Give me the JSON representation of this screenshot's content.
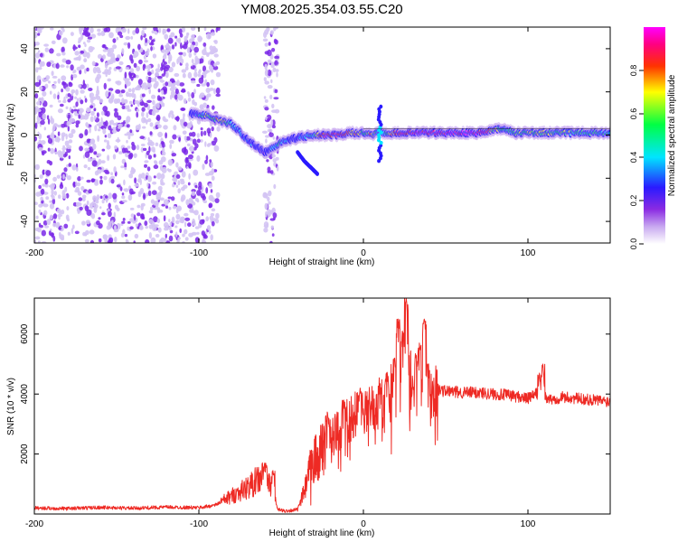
{
  "title": "YM08.2025.354.03.55.C20",
  "colors": {
    "snr_line": "#ee2a24",
    "axis": "#000000",
    "spectro_bg": "#ffffff",
    "noise_light": "#d4c4f4",
    "noise_dark": "#7a28e8",
    "colormap": [
      "#ffffff",
      "#c8a8f0",
      "#8a2be2",
      "#2a1aff",
      "#00e5ff",
      "#00ff44",
      "#ffff00",
      "#ff3300",
      "#ff0080",
      "#ff00ff"
    ]
  },
  "chart_data": [
    {
      "type": "heatmap",
      "name": "spectrogram",
      "xlabel": "Height of straight line (km)",
      "ylabel": "Frequency (Hz)",
      "xlim": [
        -200,
        150
      ],
      "ylim": [
        -50,
        50
      ],
      "xticks": [
        -200,
        -100,
        0,
        100
      ],
      "xtick_labels": [
        "-200",
        "-100",
        "0",
        "100"
      ],
      "yticks": [
        -40,
        -20,
        0,
        20,
        40
      ],
      "ytick_labels": [
        "-40",
        "-20",
        "0",
        "20",
        "40"
      ],
      "colorbar": {
        "label": "Normalized spectral amplitude",
        "range": [
          0.0,
          1.0
        ],
        "ticks": [
          0.0,
          0.2,
          0.4,
          0.6,
          0.8
        ],
        "tick_labels": [
          "0.0",
          "0.2",
          "0.4",
          "0.6",
          "0.8"
        ]
      },
      "noise_region": {
        "x_range": [
          -200,
          -88
        ],
        "extra_bands": [
          [
            -60,
            -52
          ]
        ],
        "amplitude": 0.15
      },
      "ridge": {
        "x": [
          -105,
          -95,
          -88,
          -80,
          -72,
          -66,
          -60,
          -55,
          -50,
          -44,
          -38,
          -30,
          -22,
          -15,
          -8,
          0,
          5,
          10,
          15,
          20,
          30,
          40,
          50,
          60,
          70,
          78,
          85,
          92,
          100,
          110,
          120,
          135,
          150
        ],
        "freq": [
          10,
          9,
          7,
          5,
          -1,
          -5,
          -8,
          -6,
          -3,
          -2,
          -1,
          0,
          0,
          0,
          1,
          1,
          0,
          2,
          0,
          1,
          1,
          1,
          1,
          1,
          1,
          2,
          3,
          1,
          1,
          1,
          1,
          1,
          1
        ],
        "amplitude": [
          0.35,
          0.6,
          0.75,
          0.5,
          0.4,
          0.35,
          0.3,
          0.45,
          0.5,
          0.35,
          0.4,
          0.55,
          0.95,
          0.9,
          0.8,
          0.6,
          0.7,
          0.45,
          0.6,
          0.85,
          0.9,
          1.0,
          1.0,
          1.0,
          1.0,
          0.75,
          0.5,
          0.6,
          0.6,
          0.65,
          0.6,
          0.55,
          0.5
        ]
      },
      "tail": {
        "x": [
          -40,
          -36,
          -32,
          -28
        ],
        "freq": [
          -8,
          -12,
          -15,
          -18
        ],
        "amplitude": [
          0.3,
          0.28,
          0.26,
          0.22
        ]
      }
    },
    {
      "type": "line",
      "name": "snr",
      "xlabel": "Height of straight line (km)",
      "ylabel": "SNR (10 * v/v)",
      "xlim": [
        -200,
        150
      ],
      "ylim": [
        0,
        7200
      ],
      "xticks": [
        -200,
        -100,
        0,
        100
      ],
      "xtick_labels": [
        "-200",
        "-100",
        "0",
        "100"
      ],
      "yticks": [
        2000,
        4000,
        6000
      ],
      "ytick_labels": [
        "2000",
        "4000",
        "6000"
      ],
      "series": [
        {
          "name": "SNR",
          "x": [
            -200,
            -180,
            -160,
            -140,
            -120,
            -100,
            -95,
            -90,
            -85,
            -80,
            -75,
            -70,
            -65,
            -60,
            -55,
            -52,
            -48,
            -44,
            -40,
            -35,
            -32,
            -30,
            -25,
            -20,
            -15,
            -10,
            -5,
            0,
            5,
            10,
            15,
            20,
            25,
            30,
            35,
            40,
            45,
            50,
            60,
            70,
            80,
            90,
            95,
            100,
            105,
            110,
            115,
            120,
            130,
            140,
            150
          ],
          "y": [
            200,
            180,
            220,
            190,
            230,
            210,
            250,
            300,
            450,
            600,
            750,
            900,
            1100,
            1300,
            700,
            150,
            100,
            120,
            150,
            900,
            1600,
            1800,
            2200,
            2700,
            2800,
            3100,
            3300,
            3500,
            3600,
            3700,
            3900,
            4200,
            4600,
            4400,
            4500,
            4200,
            4150,
            4100,
            4050,
            4050,
            4000,
            3950,
            3900,
            3850,
            4000,
            3900,
            3800,
            3900,
            3850,
            3800,
            3750
          ],
          "spikes": [
            [
              -60,
              1700
            ],
            [
              -55,
              1450
            ],
            [
              -22,
              3400
            ],
            [
              -12,
              3800
            ],
            [
              -2,
              4200
            ],
            [
              10,
              4300
            ],
            [
              14,
              4700
            ],
            [
              19,
              5200
            ],
            [
              21,
              6500
            ],
            [
              24,
              6200
            ],
            [
              26,
              7200
            ],
            [
              32,
              5300
            ],
            [
              34,
              5700
            ],
            [
              37,
              6500
            ],
            [
              39,
              5000
            ],
            [
              107,
              4700
            ],
            [
              109,
              5000
            ]
          ]
        }
      ]
    }
  ]
}
